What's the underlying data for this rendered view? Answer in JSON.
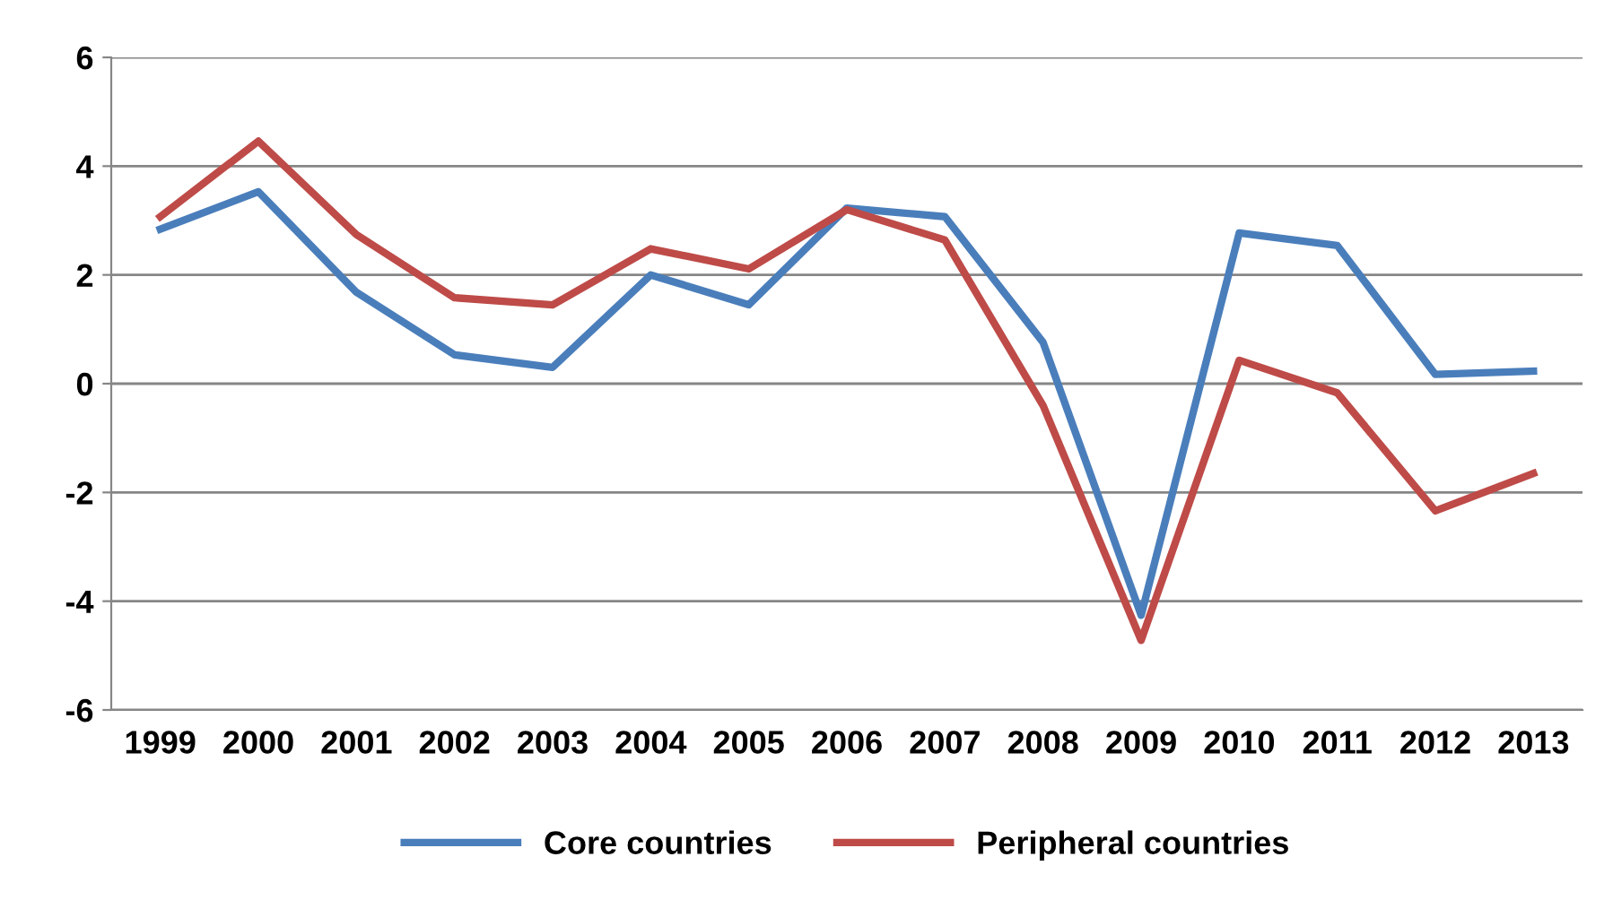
{
  "chart_data": {
    "type": "line",
    "categories": [
      "1999",
      "2000",
      "2001",
      "2002",
      "2003",
      "2004",
      "2005",
      "2006",
      "2007",
      "2008",
      "2009",
      "2010",
      "2011",
      "2012",
      "2013"
    ],
    "series": [
      {
        "name": "Core countries",
        "color": "#4a7ebb",
        "values": [
          2.84,
          3.53,
          1.68,
          0.53,
          0.3,
          2.0,
          1.45,
          3.23,
          3.07,
          0.76,
          -4.26,
          2.77,
          2.54,
          0.17,
          0.23
        ]
      },
      {
        "name": "Peripheral countries",
        "color": "#be4b48",
        "values": [
          3.07,
          4.46,
          2.74,
          1.58,
          1.45,
          2.48,
          2.11,
          3.2,
          2.64,
          -0.4,
          -4.72,
          0.43,
          -0.17,
          -2.34,
          -1.65
        ]
      }
    ],
    "ylim": [
      -6,
      6
    ],
    "yticks": [
      -6,
      -4,
      -2,
      0,
      2,
      4,
      6
    ],
    "grid": "y",
    "legend": "bottom",
    "marker": "none",
    "line_style": "solid"
  }
}
